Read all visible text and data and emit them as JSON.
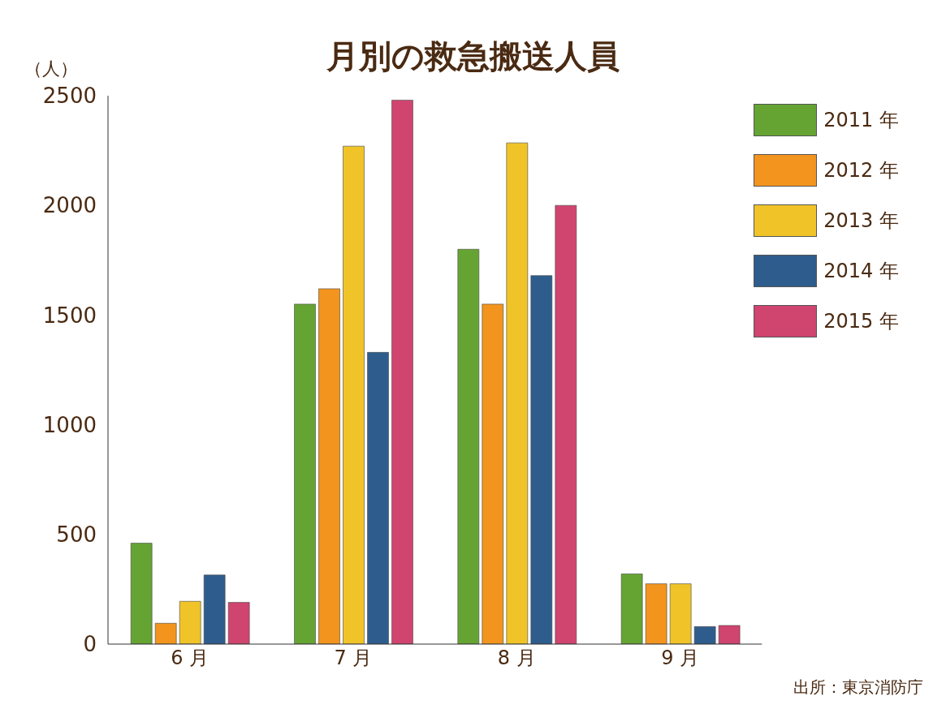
{
  "chart_data": {
    "type": "bar",
    "title": "月別の救急搬送人員",
    "ylabel": "（人）",
    "annotations": [
      "出所：東京消防庁"
    ],
    "categories": [
      "6 月",
      "7 月",
      "8 月",
      "9 月"
    ],
    "series": [
      {
        "name": "2011 年",
        "color": "#65a433",
        "values": [
          460,
          1550,
          1800,
          320
        ]
      },
      {
        "name": "2012 年",
        "color": "#f2941e",
        "values": [
          95,
          1620,
          1550,
          275
        ]
      },
      {
        "name": "2013 年",
        "color": "#f0c428",
        "values": [
          195,
          2270,
          2285,
          275
        ]
      },
      {
        "name": "2014 年",
        "color": "#2e5d8d",
        "values": [
          315,
          1330,
          1680,
          80
        ]
      },
      {
        "name": "2015 年",
        "color": "#d04470",
        "values": [
          190,
          2480,
          2000,
          85
        ]
      }
    ],
    "ylim": [
      0,
      2500
    ],
    "yticks": [
      0,
      500,
      1000,
      1500,
      2000,
      2500
    ],
    "grid": false,
    "legend": "top right"
  }
}
